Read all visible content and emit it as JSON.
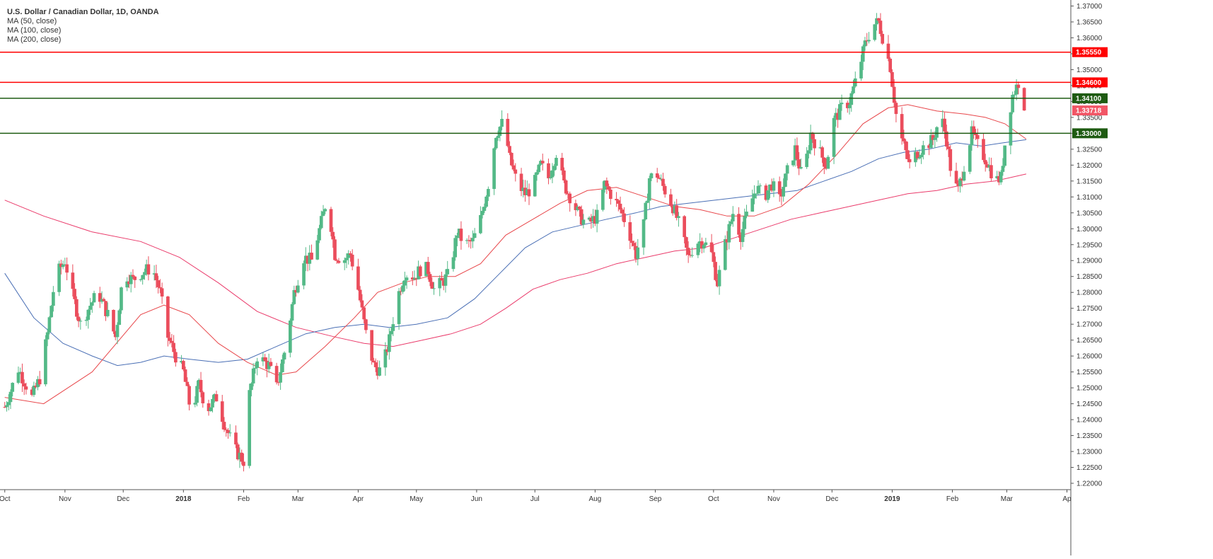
{
  "legend": {
    "title": "U.S. Dollar / Canadian Dollar, 1D, OANDA",
    "ma50": "MA (50, close)",
    "ma100": "MA (100, close)",
    "ma200": "MA (200, close)"
  },
  "colors": {
    "up": "#53b987",
    "down": "#eb4d5c",
    "ma50": "#e8474b",
    "ma100": "#4a6fb5",
    "ma200": "#ea3b6b",
    "resistance": "#ff0000",
    "support": "#1e5b12",
    "last_price": "#f25666"
  },
  "chart_data": {
    "type": "candlestick",
    "y_range": [
      1.218,
      1.371
    ],
    "y_ticks": [
      "1.37000",
      "1.36500",
      "1.36000",
      "1.35500",
      "1.35000",
      "1.34500",
      "1.34000",
      "1.33500",
      "1.33000",
      "1.32500",
      "1.32000",
      "1.31500",
      "1.31000",
      "1.30500",
      "1.30000",
      "1.29500",
      "1.29000",
      "1.28500",
      "1.28000",
      "1.27500",
      "1.27000",
      "1.26500",
      "1.26000",
      "1.25500",
      "1.25000",
      "1.24500",
      "1.24000",
      "1.23500",
      "1.23000",
      "1.22500",
      "1.22000"
    ],
    "x_labels": [
      {
        "label": "Oct",
        "day": 0,
        "bold": false
      },
      {
        "label": "Nov",
        "day": 31,
        "bold": false
      },
      {
        "label": "Dec",
        "day": 61,
        "bold": false
      },
      {
        "label": "2018",
        "day": 92,
        "bold": true
      },
      {
        "label": "Feb",
        "day": 123,
        "bold": false
      },
      {
        "label": "Mar",
        "day": 151,
        "bold": false
      },
      {
        "label": "Apr",
        "day": 182,
        "bold": false
      },
      {
        "label": "May",
        "day": 212,
        "bold": false
      },
      {
        "label": "Jun",
        "day": 243,
        "bold": false
      },
      {
        "label": "Jul",
        "day": 273,
        "bold": false
      },
      {
        "label": "Aug",
        "day": 304,
        "bold": false
      },
      {
        "label": "Sep",
        "day": 335,
        "bold": false
      },
      {
        "label": "Oct",
        "day": 365,
        "bold": false
      },
      {
        "label": "Nov",
        "day": 396,
        "bold": false
      },
      {
        "label": "Dec",
        "day": 426,
        "bold": false
      },
      {
        "label": "2019",
        "day": 457,
        "bold": true
      },
      {
        "label": "Feb",
        "day": 488,
        "bold": false
      },
      {
        "label": "Mar",
        "day": 516,
        "bold": false
      },
      {
        "label": "Ap",
        "day": 547,
        "bold": false
      }
    ],
    "x_range_days": [
      -1,
      549
    ],
    "horizontal_levels": [
      {
        "value": 1.3555,
        "label": "1.35550",
        "kind": "resistance"
      },
      {
        "value": 1.346,
        "label": "1.34600",
        "kind": "resistance"
      },
      {
        "value": 1.341,
        "label": "1.34100",
        "kind": "support"
      },
      {
        "value": 1.33,
        "label": "1.33000",
        "kind": "support"
      }
    ],
    "last_price": {
      "value": 1.33718,
      "label": "1.33718"
    },
    "price_path": [
      [
        0,
        1.244
      ],
      [
        7,
        1.256
      ],
      [
        14,
        1.247
      ],
      [
        18,
        1.253
      ],
      [
        22,
        1.267
      ],
      [
        26,
        1.285
      ],
      [
        31,
        1.29
      ],
      [
        35,
        1.279
      ],
      [
        39,
        1.27
      ],
      [
        44,
        1.276
      ],
      [
        48,
        1.28
      ],
      [
        53,
        1.273
      ],
      [
        57,
        1.266
      ],
      [
        61,
        1.286
      ],
      [
        66,
        1.284
      ],
      [
        70,
        1.286
      ],
      [
        76,
        1.288
      ],
      [
        80,
        1.28
      ],
      [
        84,
        1.266
      ],
      [
        88,
        1.26
      ],
      [
        92,
        1.255
      ],
      [
        96,
        1.242
      ],
      [
        100,
        1.251
      ],
      [
        104,
        1.243
      ],
      [
        109,
        1.247
      ],
      [
        113,
        1.239
      ],
      [
        118,
        1.231
      ],
      [
        123,
        1.227
      ],
      [
        126,
        1.248
      ],
      [
        130,
        1.26
      ],
      [
        136,
        1.257
      ],
      [
        140,
        1.25
      ],
      [
        145,
        1.264
      ],
      [
        149,
        1.28
      ],
      [
        154,
        1.291
      ],
      [
        158,
        1.29
      ],
      [
        163,
        1.302
      ],
      [
        166,
        1.31
      ],
      [
        170,
        1.292
      ],
      [
        174,
        1.29
      ],
      [
        178,
        1.292
      ],
      [
        182,
        1.281
      ],
      [
        186,
        1.267
      ],
      [
        190,
        1.257
      ],
      [
        194,
        1.255
      ],
      [
        198,
        1.265
      ],
      [
        202,
        1.278
      ],
      [
        206,
        1.286
      ],
      [
        211,
        1.285
      ],
      [
        215,
        1.288
      ],
      [
        218,
        1.287
      ],
      [
        221,
        1.281
      ],
      [
        225,
        1.283
      ],
      [
        229,
        1.286
      ],
      [
        233,
        1.299
      ],
      [
        237,
        1.295
      ],
      [
        241,
        1.296
      ],
      [
        245,
        1.303
      ],
      [
        249,
        1.314
      ],
      [
        253,
        1.33
      ],
      [
        257,
        1.334
      ],
      [
        260,
        1.322
      ],
      [
        264,
        1.314
      ],
      [
        268,
        1.311
      ],
      [
        272,
        1.313
      ],
      [
        276,
        1.32
      ],
      [
        280,
        1.316
      ],
      [
        284,
        1.324
      ],
      [
        288,
        1.314
      ],
      [
        292,
        1.309
      ],
      [
        296,
        1.304
      ],
      [
        300,
        1.301
      ],
      [
        305,
        1.304
      ],
      [
        309,
        1.314
      ],
      [
        313,
        1.31
      ],
      [
        317,
        1.306
      ],
      [
        321,
        1.3
      ],
      [
        325,
        1.292
      ],
      [
        329,
        1.301
      ],
      [
        332,
        1.316
      ],
      [
        336,
        1.317
      ],
      [
        340,
        1.312
      ],
      [
        344,
        1.307
      ],
      [
        348,
        1.3
      ],
      [
        352,
        1.291
      ],
      [
        356,
        1.296
      ],
      [
        360,
        1.296
      ],
      [
        364,
        1.292
      ],
      [
        367,
        1.283
      ],
      [
        371,
        1.295
      ],
      [
        375,
        1.305
      ],
      [
        379,
        1.298
      ],
      [
        383,
        1.306
      ],
      [
        387,
        1.313
      ],
      [
        391,
        1.31
      ],
      [
        395,
        1.314
      ],
      [
        399,
        1.309
      ],
      [
        403,
        1.318
      ],
      [
        407,
        1.325
      ],
      [
        411,
        1.315
      ],
      [
        415,
        1.33
      ],
      [
        419,
        1.325
      ],
      [
        423,
        1.32
      ],
      [
        427,
        1.334
      ],
      [
        431,
        1.338
      ],
      [
        435,
        1.34
      ],
      [
        439,
        1.348
      ],
      [
        443,
        1.358
      ],
      [
        447,
        1.364
      ],
      [
        450,
        1.365
      ],
      [
        453,
        1.358
      ],
      [
        456,
        1.351
      ],
      [
        459,
        1.336
      ],
      [
        462,
        1.328
      ],
      [
        466,
        1.32
      ],
      [
        470,
        1.324
      ],
      [
        474,
        1.326
      ],
      [
        478,
        1.328
      ],
      [
        482,
        1.336
      ],
      [
        485,
        1.328
      ],
      [
        488,
        1.315
      ],
      [
        491,
        1.312
      ],
      [
        494,
        1.32
      ],
      [
        498,
        1.33
      ],
      [
        502,
        1.325
      ],
      [
        506,
        1.321
      ],
      [
        510,
        1.315
      ],
      [
        513,
        1.316
      ],
      [
        516,
        1.332
      ],
      [
        519,
        1.342
      ],
      [
        522,
        1.346
      ],
      [
        524,
        1.3395
      ],
      [
        525,
        1.33718
      ]
    ],
    "ma50_points": [
      [
        0,
        1.247
      ],
      [
        20,
        1.245
      ],
      [
        45,
        1.255
      ],
      [
        70,
        1.273
      ],
      [
        82,
        1.276
      ],
      [
        95,
        1.273
      ],
      [
        110,
        1.264
      ],
      [
        125,
        1.258
      ],
      [
        140,
        1.254
      ],
      [
        150,
        1.255
      ],
      [
        165,
        1.263
      ],
      [
        180,
        1.272
      ],
      [
        192,
        1.28
      ],
      [
        205,
        1.283
      ],
      [
        218,
        1.285
      ],
      [
        232,
        1.285
      ],
      [
        245,
        1.289
      ],
      [
        258,
        1.298
      ],
      [
        272,
        1.303
      ],
      [
        286,
        1.308
      ],
      [
        300,
        1.312
      ],
      [
        315,
        1.313
      ],
      [
        330,
        1.31
      ],
      [
        345,
        1.307
      ],
      [
        358,
        1.306
      ],
      [
        372,
        1.304
      ],
      [
        386,
        1.304
      ],
      [
        400,
        1.307
      ],
      [
        414,
        1.314
      ],
      [
        428,
        1.323
      ],
      [
        442,
        1.333
      ],
      [
        455,
        1.338
      ],
      [
        465,
        1.339
      ],
      [
        480,
        1.337
      ],
      [
        495,
        1.336
      ],
      [
        505,
        1.335
      ],
      [
        515,
        1.333
      ],
      [
        526,
        1.3282
      ]
    ],
    "ma100_points": [
      [
        0,
        1.286
      ],
      [
        15,
        1.272
      ],
      [
        30,
        1.264
      ],
      [
        45,
        1.26
      ],
      [
        58,
        1.257
      ],
      [
        70,
        1.258
      ],
      [
        82,
        1.26
      ],
      [
        95,
        1.259
      ],
      [
        110,
        1.258
      ],
      [
        125,
        1.259
      ],
      [
        140,
        1.263
      ],
      [
        155,
        1.267
      ],
      [
        170,
        1.269
      ],
      [
        185,
        1.27
      ],
      [
        198,
        1.269
      ],
      [
        212,
        1.27
      ],
      [
        228,
        1.272
      ],
      [
        242,
        1.278
      ],
      [
        255,
        1.286
      ],
      [
        268,
        1.294
      ],
      [
        282,
        1.299
      ],
      [
        296,
        1.301
      ],
      [
        310,
        1.303
      ],
      [
        325,
        1.305
      ],
      [
        338,
        1.307
      ],
      [
        352,
        1.308
      ],
      [
        366,
        1.309
      ],
      [
        380,
        1.31
      ],
      [
        394,
        1.311
      ],
      [
        408,
        1.312
      ],
      [
        422,
        1.315
      ],
      [
        436,
        1.318
      ],
      [
        450,
        1.322
      ],
      [
        463,
        1.324
      ],
      [
        476,
        1.325
      ],
      [
        490,
        1.327
      ],
      [
        503,
        1.326
      ],
      [
        514,
        1.327
      ],
      [
        526,
        1.328
      ]
    ],
    "ma200_points": [
      [
        0,
        1.309
      ],
      [
        20,
        1.304
      ],
      [
        45,
        1.299
      ],
      [
        70,
        1.296
      ],
      [
        90,
        1.291
      ],
      [
        110,
        1.283
      ],
      [
        130,
        1.274
      ],
      [
        150,
        1.269
      ],
      [
        170,
        1.266
      ],
      [
        185,
        1.264
      ],
      [
        200,
        1.263
      ],
      [
        215,
        1.265
      ],
      [
        230,
        1.267
      ],
      [
        245,
        1.27
      ],
      [
        258,
        1.275
      ],
      [
        272,
        1.281
      ],
      [
        286,
        1.284
      ],
      [
        300,
        1.286
      ],
      [
        315,
        1.289
      ],
      [
        330,
        1.291
      ],
      [
        345,
        1.293
      ],
      [
        360,
        1.294
      ],
      [
        375,
        1.297
      ],
      [
        390,
        1.3
      ],
      [
        405,
        1.303
      ],
      [
        420,
        1.305
      ],
      [
        435,
        1.307
      ],
      [
        450,
        1.309
      ],
      [
        465,
        1.311
      ],
      [
        480,
        1.312
      ],
      [
        495,
        1.314
      ],
      [
        510,
        1.315
      ],
      [
        526,
        1.3172
      ]
    ]
  }
}
